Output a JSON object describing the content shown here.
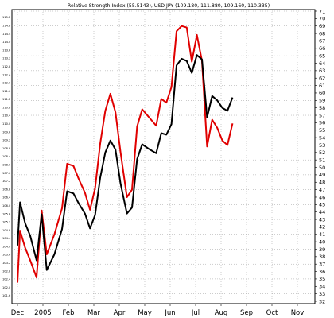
{
  "chart_data": {
    "type": "line",
    "title": "Relative Strength Index (55.5143), USD JPY (109.180, 111.880, 109.160, 110.335)",
    "xlabel": "",
    "ylabel": "",
    "x_labels": [
      "Dec",
      "2005",
      "Feb",
      "Mar",
      "Apr",
      "May",
      "Jun",
      "Jul",
      "Aug",
      "Sep",
      "Oct",
      "Nov"
    ],
    "right_axis": {
      "range": [
        32,
        71
      ],
      "ticks": [
        32,
        33,
        34,
        35,
        36,
        37,
        38,
        39,
        40,
        41,
        42,
        43,
        44,
        45,
        46,
        47,
        48,
        49,
        50,
        51,
        52,
        53,
        54,
        55,
        56,
        57,
        58,
        59,
        60,
        61,
        62,
        63,
        64,
        65,
        66,
        67,
        68,
        69,
        70,
        71
      ]
    },
    "left_axis": {
      "range": [
        101.6,
        115.4
      ],
      "ticks": [
        "101.6",
        "102.0",
        "102.4",
        "102.8",
        "103.2",
        "103.6",
        "104.0",
        "104.4",
        "104.8",
        "105.2",
        "105.6",
        "106.0",
        "106.4",
        "106.8",
        "107.2",
        "107.6",
        "108.0",
        "108.4",
        "108.8",
        "109.2",
        "109.6",
        "110.0",
        "110.4",
        "110.8",
        "111.2",
        "111.6",
        "112.0",
        "112.4",
        "112.8",
        "113.2",
        "113.6",
        "114.0",
        "114.4",
        "114.8",
        "115.2"
      ]
    },
    "grid": true,
    "series": [
      {
        "color": "#e00000",
        "axis": "right",
        "points": [
          [
            0.0,
            34.5
          ],
          [
            0.1,
            41.5
          ],
          [
            0.3,
            39.2
          ],
          [
            0.5,
            37.5
          ],
          [
            0.75,
            35.2
          ],
          [
            0.95,
            44.2
          ],
          [
            1.15,
            38.3
          ],
          [
            1.45,
            41.0
          ],
          [
            1.75,
            44.5
          ],
          [
            1.95,
            50.5
          ],
          [
            2.2,
            50.2
          ],
          [
            2.4,
            48.5
          ],
          [
            2.65,
            46.6
          ],
          [
            2.85,
            44.3
          ],
          [
            3.05,
            47.2
          ],
          [
            3.25,
            53.2
          ],
          [
            3.45,
            57.6
          ],
          [
            3.65,
            59.9
          ],
          [
            3.85,
            57.4
          ],
          [
            4.05,
            52.0
          ],
          [
            4.3,
            46.0
          ],
          [
            4.5,
            47.0
          ],
          [
            4.7,
            55.5
          ],
          [
            4.9,
            57.8
          ],
          [
            5.15,
            56.8
          ],
          [
            5.45,
            55.6
          ],
          [
            5.65,
            59.2
          ],
          [
            5.85,
            58.7
          ],
          [
            6.05,
            60.8
          ],
          [
            6.25,
            68.3
          ],
          [
            6.45,
            69.0
          ],
          [
            6.65,
            68.8
          ],
          [
            6.85,
            64.2
          ],
          [
            7.05,
            67.8
          ],
          [
            7.25,
            64.3
          ],
          [
            7.45,
            52.8
          ],
          [
            7.65,
            56.4
          ],
          [
            7.85,
            55.3
          ],
          [
            8.05,
            53.6
          ],
          [
            8.25,
            53.0
          ],
          [
            8.45,
            55.9
          ]
        ]
      },
      {
        "color": "#000000",
        "axis": "left",
        "points": [
          [
            0.0,
            39.5
          ],
          [
            0.1,
            45.3
          ],
          [
            0.3,
            42.5
          ],
          [
            0.5,
            40.8
          ],
          [
            0.75,
            37.5
          ],
          [
            0.95,
            43.7
          ],
          [
            1.15,
            36.2
          ],
          [
            1.45,
            38.3
          ],
          [
            1.75,
            41.7
          ],
          [
            1.95,
            46.8
          ],
          [
            2.2,
            46.5
          ],
          [
            2.4,
            45.2
          ],
          [
            2.65,
            43.8
          ],
          [
            2.85,
            41.8
          ],
          [
            3.05,
            43.6
          ],
          [
            3.25,
            48.6
          ],
          [
            3.45,
            52.0
          ],
          [
            3.65,
            53.6
          ],
          [
            3.85,
            52.4
          ],
          [
            4.05,
            47.8
          ],
          [
            4.3,
            43.8
          ],
          [
            4.5,
            44.6
          ],
          [
            4.7,
            51.1
          ],
          [
            4.9,
            53.1
          ],
          [
            5.15,
            52.5
          ],
          [
            5.45,
            51.9
          ],
          [
            5.65,
            54.6
          ],
          [
            5.85,
            54.4
          ],
          [
            6.05,
            55.8
          ],
          [
            6.25,
            63.7
          ],
          [
            6.45,
            64.6
          ],
          [
            6.65,
            64.3
          ],
          [
            6.85,
            62.7
          ],
          [
            7.05,
            65.1
          ],
          [
            7.25,
            64.5
          ],
          [
            7.45,
            56.7
          ],
          [
            7.65,
            59.6
          ],
          [
            7.85,
            59.0
          ],
          [
            8.05,
            58.0
          ],
          [
            8.25,
            57.6
          ],
          [
            8.45,
            59.4
          ]
        ]
      }
    ]
  }
}
